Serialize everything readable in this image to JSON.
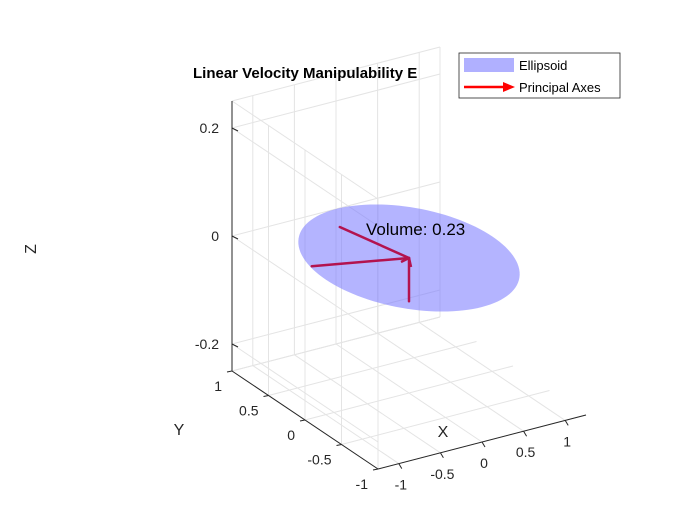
{
  "chart_data": {
    "type": "surface3d",
    "title": "Linear Velocity Manipulability E",
    "xlabel": "X",
    "ylabel": "Y",
    "zlabel": "Z",
    "xlim": [
      -1.25,
      1.25
    ],
    "ylim": [
      -1,
      1
    ],
    "zlim": [
      -0.25,
      0.25
    ],
    "xticks": [
      -1,
      -0.5,
      0,
      0.5,
      1
    ],
    "yticks": [
      -1,
      -0.5,
      0,
      0.5,
      1
    ],
    "zticks": [
      -0.2,
      0,
      0.2
    ],
    "grid": true,
    "ellipsoid": {
      "center": [
        0,
        0,
        0
      ],
      "radii": [
        1,
        1,
        0.02
      ],
      "color": "#7777ff",
      "alpha": 0.55
    },
    "principal_axes": [
      {
        "from": [
          0,
          0,
          0
        ],
        "to": [
          -0.95,
          0.25,
          0.0
        ]
      },
      {
        "from": [
          0,
          0,
          0
        ],
        "to": [
          -0.2,
          0.72,
          0.0
        ]
      },
      {
        "from": [
          0,
          0,
          0
        ],
        "to": [
          0,
          0,
          -0.08
        ]
      }
    ],
    "arrow_color": "#b3134f",
    "annotation": {
      "text": "Volume: 0.23",
      "position": [
        0.05,
        0.48,
        0.05
      ]
    },
    "legend": {
      "placement": "top-right",
      "entries": [
        {
          "label": "Ellipsoid",
          "color": "#b0b0ff",
          "kind": "patch"
        },
        {
          "label": "Principal Axes",
          "color": "#ff0000",
          "kind": "arrow"
        }
      ]
    }
  }
}
